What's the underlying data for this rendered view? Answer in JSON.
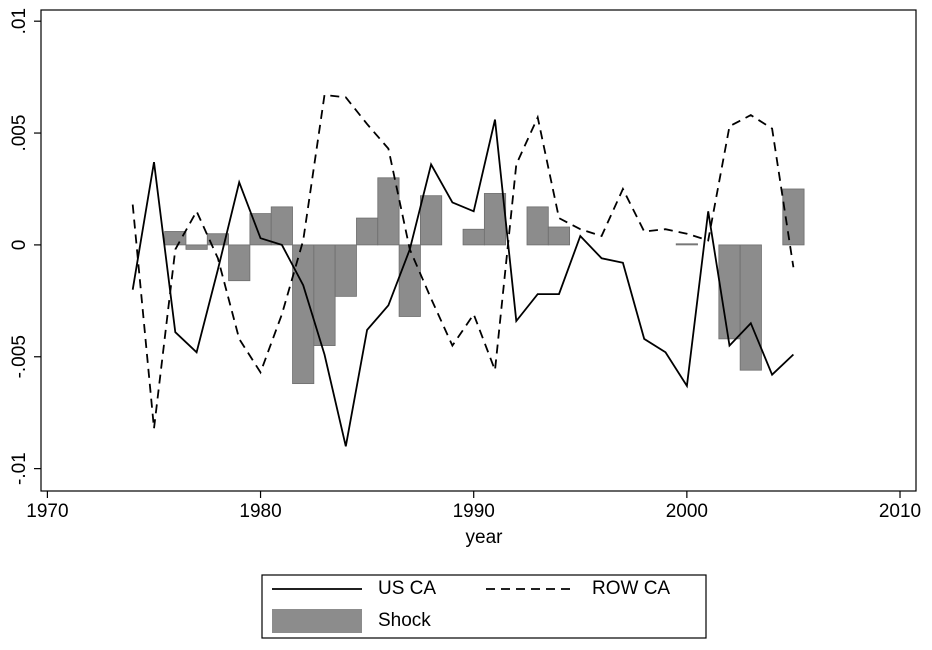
{
  "chart_data": {
    "type": "combo",
    "xlabel": "year",
    "x": [
      1974,
      1975,
      1976,
      1977,
      1978,
      1979,
      1980,
      1981,
      1982,
      1983,
      1984,
      1985,
      1986,
      1987,
      1988,
      1989,
      1990,
      1991,
      1992,
      1993,
      1994,
      1995,
      1996,
      1997,
      1998,
      1999,
      2000,
      2001,
      2002,
      2003,
      2004,
      2005
    ],
    "series": [
      {
        "name": "US CA",
        "type": "line",
        "style": "solid",
        "color": "#000000",
        "values": [
          -0.002,
          0.0037,
          -0.0039,
          -0.0048,
          -0.0011,
          0.0028,
          0.0003,
          0,
          -0.0018,
          -0.0049,
          -0.009,
          -0.0038,
          -0.0027,
          -0.0002,
          0.0036,
          0.0019,
          0.0015,
          0.0056,
          -0.0034,
          -0.0022,
          -0.0022,
          0.0004,
          -0.0006,
          -0.0008,
          -0.0042,
          -0.0048,
          -0.0063,
          0.0015,
          -0.0045,
          -0.0035,
          -0.0058,
          -0.0049
        ]
      },
      {
        "name": "ROW CA",
        "type": "line",
        "style": "dashed",
        "color": "#000000",
        "values": [
          0.0018,
          -0.0082,
          -0.0002,
          0.0015,
          -0.0006,
          -0.0042,
          -0.0057,
          -0.0031,
          0.0002,
          0.0067,
          0.0066,
          0.0054,
          0.0043,
          -0.0002,
          -0.0024,
          -0.0045,
          -0.0031,
          -0.0056,
          0.0036,
          0.0057,
          0.0012,
          0.0007,
          0.0004,
          0.0025,
          0.0006,
          0.0007,
          0.0005,
          0.0002,
          0.0053,
          0.0058,
          0.0052,
          -0.001
        ]
      },
      {
        "name": "Shock",
        "type": "bar",
        "color": "#8c8c8c",
        "values": [
          null,
          null,
          0.0006,
          -0.0002,
          0.0005,
          -0.0016,
          0.0014,
          0.0017,
          -0.0062,
          -0.0045,
          -0.0023,
          0.0012,
          0.003,
          -0.0032,
          0.0022,
          null,
          0.0007,
          0.0023,
          null,
          0.0017,
          0.0008,
          null,
          null,
          null,
          null,
          null,
          5e-05,
          null,
          -0.0042,
          -0.0056,
          null,
          0.0025
        ]
      }
    ],
    "xlim": [
      1969.7,
      2010.75
    ],
    "xticks": [
      1970,
      1980,
      1990,
      2000,
      2010
    ],
    "ylim": [
      -0.011,
      0.0105
    ],
    "yticks": [
      {
        "value": -0.01,
        "label": "-.01"
      },
      {
        "value": -0.005,
        "label": "-.005"
      },
      0,
      {
        "value": 0.005,
        "label": ".005"
      },
      {
        "value": 0.01,
        "label": ".01"
      }
    ],
    "legend": "bottom"
  }
}
